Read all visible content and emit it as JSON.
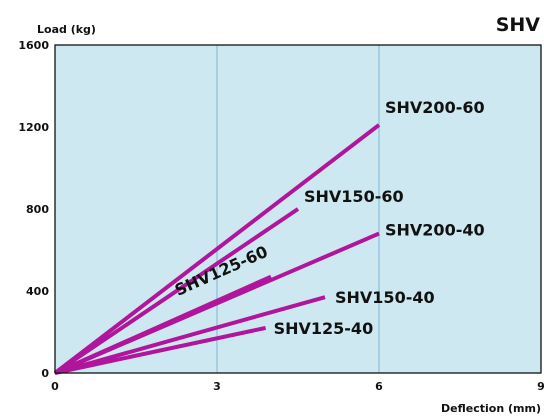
{
  "badge": "SHV",
  "chart_data": {
    "type": "line",
    "ylabel": "Load (kg)",
    "xlabel": "Deflection (mm)",
    "xlim": [
      0,
      9
    ],
    "ylim": [
      0,
      1600
    ],
    "xticks": [
      0,
      3,
      6,
      9
    ],
    "yticks": [
      0,
      400,
      800,
      1200,
      1600
    ],
    "grid": "vertical",
    "colors": {
      "plot_background": "#cde8f0",
      "line": "#b0159b",
      "grid": "#7fb6d6"
    },
    "series": [
      {
        "name": "SHV200-60",
        "x": [
          0,
          6.0
        ],
        "y": [
          0,
          1210
        ]
      },
      {
        "name": "SHV150-60",
        "x": [
          0,
          4.5
        ],
        "y": [
          0,
          800
        ]
      },
      {
        "name": "SHV125-60",
        "x": [
          0,
          4.0
        ],
        "y": [
          0,
          470
        ]
      },
      {
        "name": "SHV200-40",
        "x": [
          0,
          6.0
        ],
        "y": [
          0,
          680
        ]
      },
      {
        "name": "SHV150-40",
        "x": [
          0,
          5.0
        ],
        "y": [
          0,
          370
        ]
      },
      {
        "name": "SHV125-40",
        "x": [
          0,
          3.9
        ],
        "y": [
          0,
          220
        ]
      }
    ]
  }
}
